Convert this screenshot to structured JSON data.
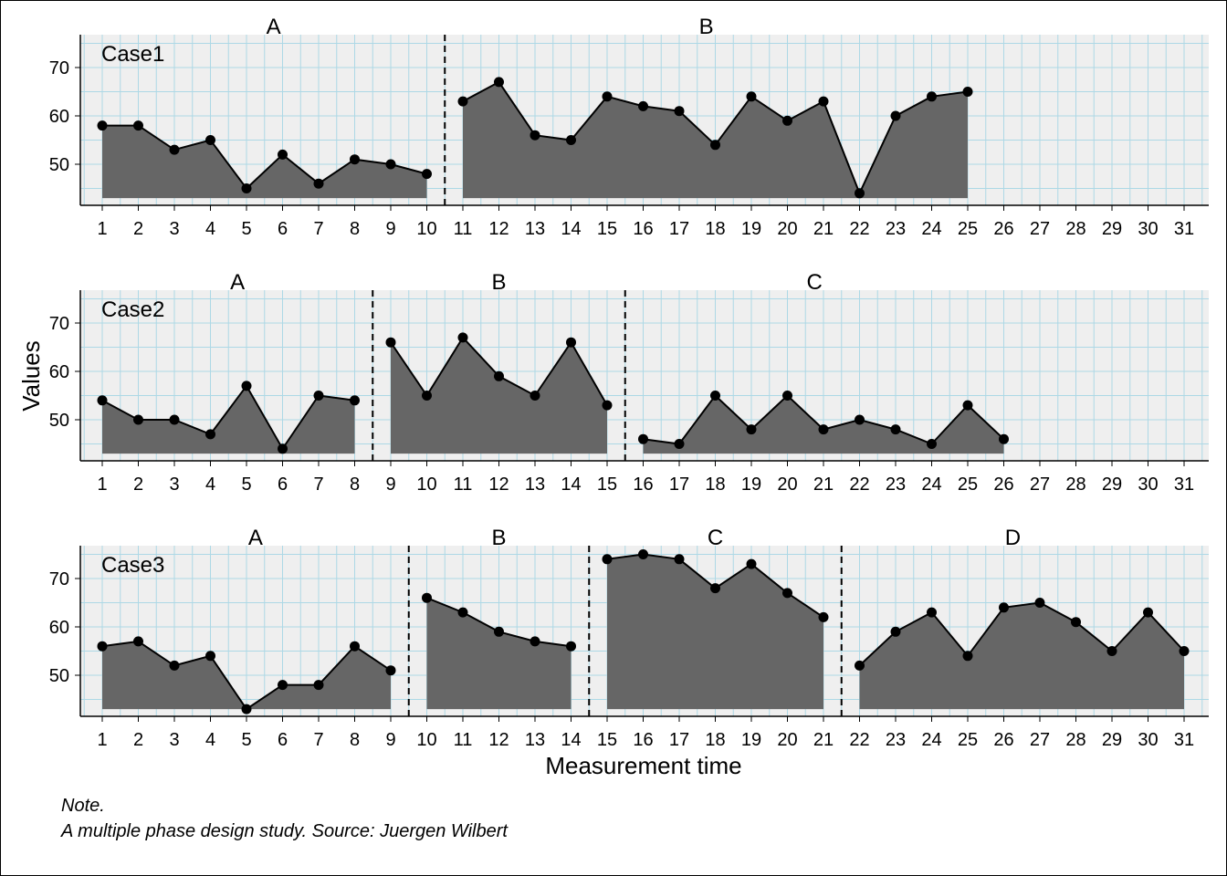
{
  "chart_data": {
    "type": "area",
    "xlabel": "Measurement time",
    "ylabel": "Values",
    "xlim": [
      1,
      31
    ],
    "ylim": [
      43,
      75
    ],
    "yticks": [
      50,
      60,
      70
    ],
    "xticks": [
      1,
      2,
      3,
      4,
      5,
      6,
      7,
      8,
      9,
      10,
      11,
      12,
      13,
      14,
      15,
      16,
      17,
      18,
      19,
      20,
      21,
      22,
      23,
      24,
      25,
      26,
      27,
      28,
      29,
      30,
      31
    ],
    "colors": {
      "fill": "#666666",
      "panel": "#efefef",
      "grid": "#add8e6",
      "line": "#000000"
    },
    "cases": [
      {
        "name": "Case1",
        "phases": [
          {
            "label": "A",
            "x": [
              1,
              2,
              3,
              4,
              5,
              6,
              7,
              8,
              9,
              10
            ],
            "values": [
              58,
              58,
              53,
              55,
              45,
              52,
              46,
              51,
              50,
              48
            ]
          },
          {
            "label": "B",
            "x": [
              11,
              12,
              13,
              14,
              15,
              16,
              17,
              18,
              19,
              20,
              21,
              22,
              23,
              24,
              25
            ],
            "values": [
              63,
              67,
              56,
              55,
              64,
              62,
              61,
              54,
              64,
              59,
              63,
              44,
              60,
              64,
              65
            ]
          }
        ]
      },
      {
        "name": "Case2",
        "phases": [
          {
            "label": "A",
            "x": [
              1,
              2,
              3,
              4,
              5,
              6,
              7,
              8
            ],
            "values": [
              54,
              50,
              50,
              47,
              57,
              44,
              55,
              54
            ]
          },
          {
            "label": "B",
            "x": [
              9,
              10,
              11,
              12,
              13,
              14,
              15
            ],
            "values": [
              66,
              55,
              67,
              59,
              55,
              66,
              53
            ]
          },
          {
            "label": "C",
            "x": [
              16,
              17,
              18,
              19,
              20,
              21,
              22,
              23,
              24,
              25,
              26
            ],
            "values": [
              46,
              45,
              55,
              48,
              55,
              48,
              50,
              48,
              45,
              53,
              46
            ]
          }
        ]
      },
      {
        "name": "Case3",
        "phases": [
          {
            "label": "A",
            "x": [
              1,
              2,
              3,
              4,
              5,
              6,
              7,
              8,
              9
            ],
            "values": [
              56,
              57,
              52,
              54,
              43,
              48,
              48,
              56,
              51
            ]
          },
          {
            "label": "B",
            "x": [
              10,
              11,
              12,
              13,
              14
            ],
            "values": [
              66,
              63,
              59,
              57,
              56
            ]
          },
          {
            "label": "C",
            "x": [
              15,
              16,
              17,
              18,
              19,
              20,
              21
            ],
            "values": [
              74,
              75,
              74,
              68,
              73,
              67,
              62
            ]
          },
          {
            "label": "D",
            "x": [
              22,
              23,
              24,
              25,
              26,
              27,
              28,
              29,
              30,
              31
            ],
            "values": [
              52,
              59,
              63,
              54,
              64,
              65,
              61,
              55,
              63,
              55
            ]
          }
        ]
      }
    ]
  },
  "note": {
    "title": "Note.",
    "caption": "A multiple phase design study. Source: Juergen Wilbert"
  }
}
